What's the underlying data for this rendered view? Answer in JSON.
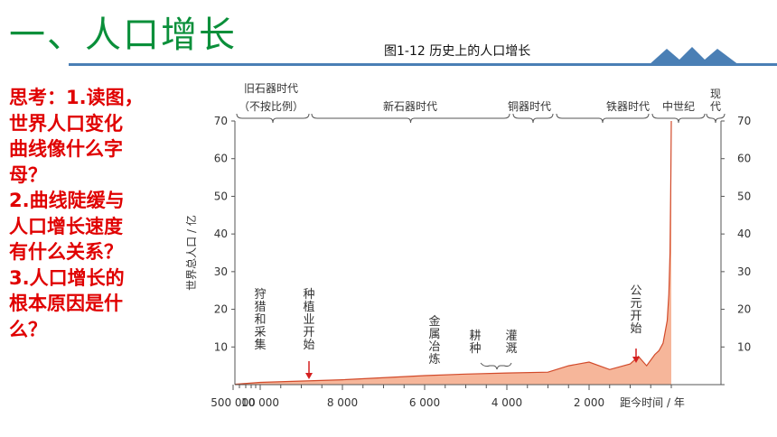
{
  "slide": {
    "title": "一、人口增长",
    "caption": "图1-12  历史上的人口增长",
    "questions": [
      "思考：1.读图，",
      "世界人口变化",
      "曲线像什么字",
      "母？",
      "2.曲线陡缓与",
      "人口增长速度",
      "有什么关系？",
      "3.人口增长的",
      "根本原因是什",
      "么？"
    ]
  },
  "colors": {
    "title": "#0a8f3a",
    "rule": "#4a7fb5",
    "questions": "#e00000",
    "fill": "#f6b69a",
    "line": "#d24a2a",
    "arrow": "#d42020"
  },
  "chart_data": {
    "type": "area",
    "title": "图1-12  历史上的人口增长",
    "ylabel": "世界总人口 / 亿",
    "xlabel": "距今时间 / 年",
    "ylim": [
      0,
      70
    ],
    "yticks": [
      10,
      20,
      30,
      40,
      50,
      60,
      70
    ],
    "xticks": [
      "500 000",
      "10 000",
      "8 000",
      "6 000",
      "4 000",
      "2 000"
    ],
    "periods": [
      "旧石器时代",
      "（不按比例）",
      "新石器时代",
      "铜器时代",
      "铁器时代",
      "中世纪",
      "现",
      "代"
    ],
    "annotations": [
      {
        "lines": [
          "狩",
          "猎",
          "和",
          "采",
          "集"
        ]
      },
      {
        "lines": [
          "种",
          "植",
          "业",
          "开",
          "始"
        ],
        "arrow": true
      },
      {
        "lines": [
          "金",
          "属",
          "冶",
          "炼"
        ]
      },
      {
        "lines": [
          "耕",
          "种"
        ]
      },
      {
        "lines": [
          "灌",
          "溉"
        ]
      },
      {
        "lines": [
          "公",
          "元",
          "开",
          "始"
        ],
        "arrow": true
      }
    ],
    "series": [
      {
        "x": [
          500000,
          10000,
          8000,
          6000,
          5000,
          4000,
          3000,
          2500,
          2000,
          1500,
          1000,
          800,
          600,
          400,
          300,
          200,
          150,
          100,
          60,
          30,
          10,
          0
        ],
        "values": [
          0.1,
          0.6,
          1.3,
          2.4,
          2.8,
          3.1,
          3.3,
          5.0,
          6.0,
          4.0,
          5.5,
          7.5,
          5.0,
          8.0,
          9.0,
          11.0,
          14.0,
          17.0,
          24.0,
          35.0,
          55.0,
          70.0
        ]
      }
    ]
  }
}
